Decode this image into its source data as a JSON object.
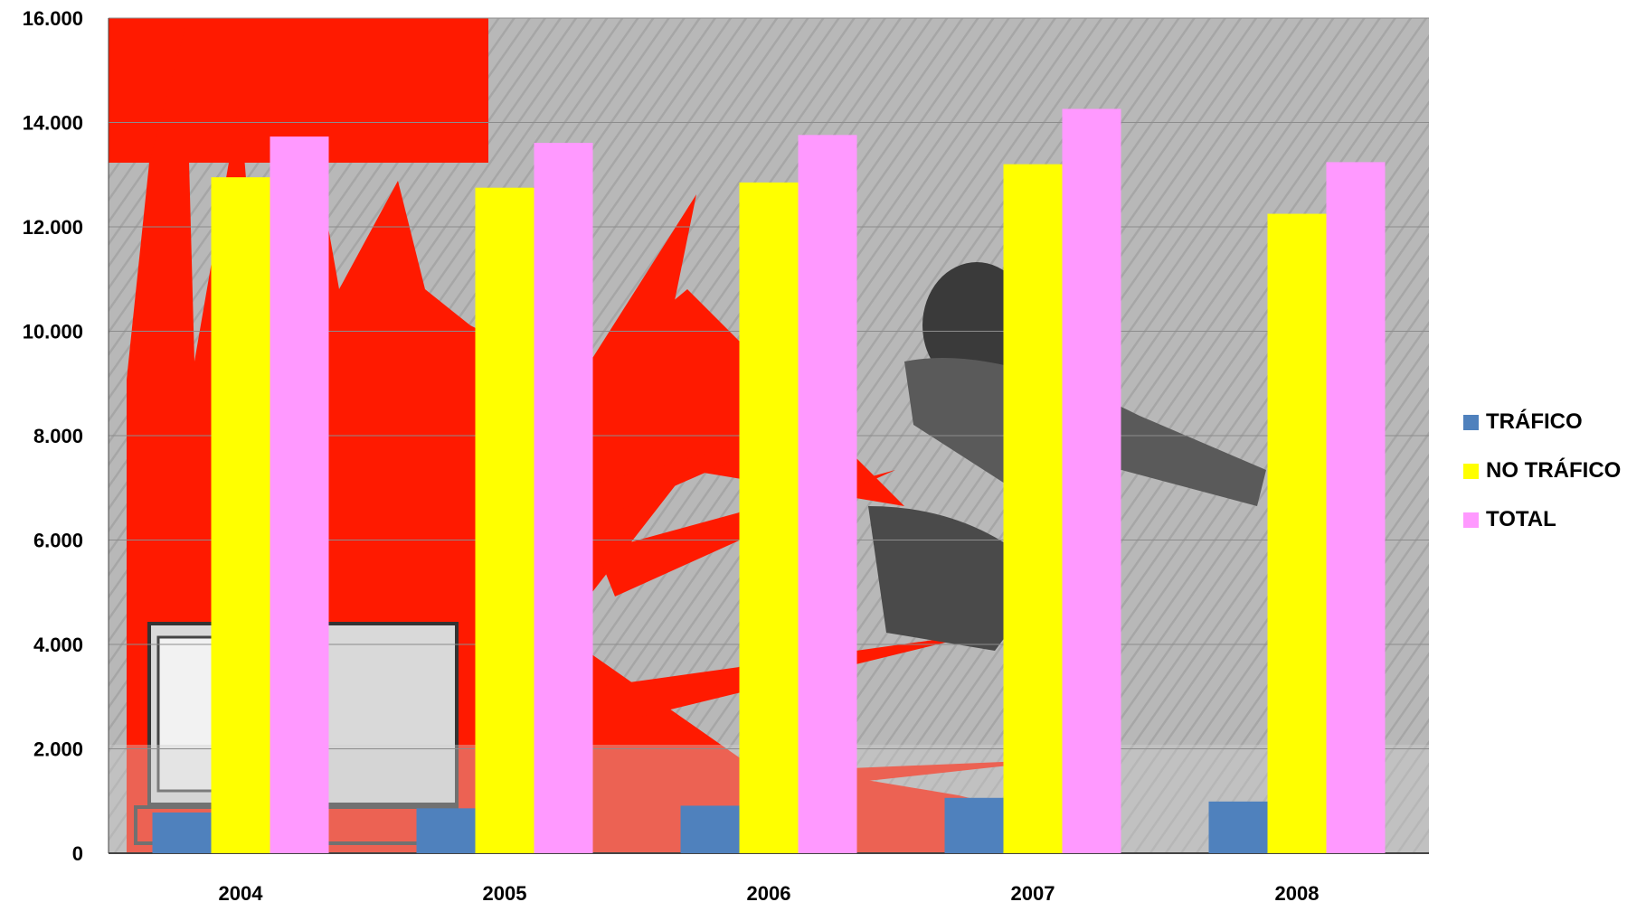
{
  "chart_data": {
    "type": "bar",
    "categories": [
      "2004",
      "2005",
      "2006",
      "2007",
      "2008"
    ],
    "series": [
      {
        "name": "TRÁFICO",
        "color": "#4f81bd",
        "values": [
          780,
          860,
          910,
          1060,
          990
        ]
      },
      {
        "name": "NO TRÁFICO",
        "color": "#ffff00",
        "values": [
          12950,
          12750,
          12850,
          13200,
          12250
        ]
      },
      {
        "name": "TOTAL",
        "color": "#ff99ff",
        "values": [
          13730,
          13610,
          13760,
          14260,
          13240
        ]
      }
    ],
    "yticks": [
      "0",
      "2.000",
      "4.000",
      "6.000",
      "8.000",
      "10.000",
      "12.000",
      "14.000",
      "16.000"
    ],
    "ylim": [
      0,
      16000
    ],
    "grid": true,
    "legend_position": "right",
    "background": "photo collage (red explosion, engine, running man)"
  }
}
